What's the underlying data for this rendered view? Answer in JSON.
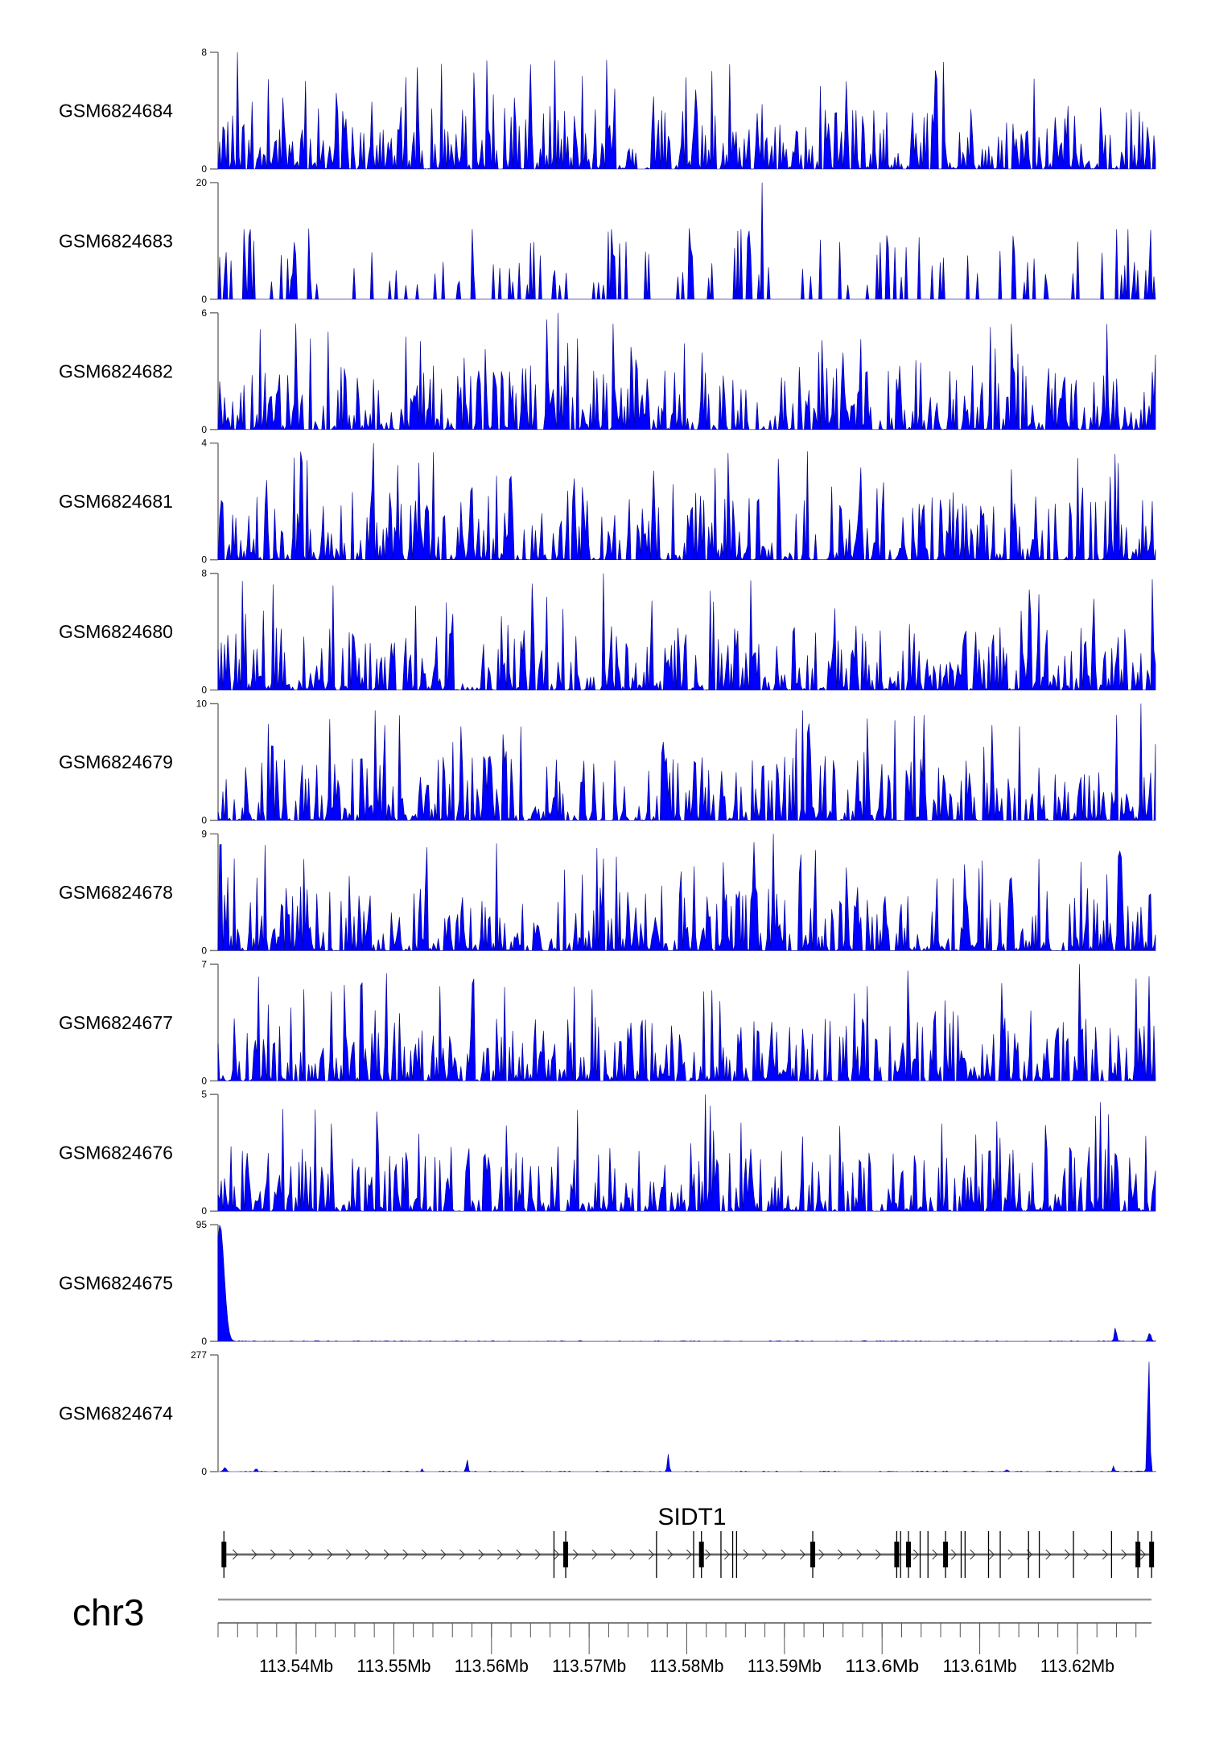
{
  "chart_data": {
    "type": "area",
    "title": "",
    "xlabel": "",
    "chromosome": "chr3",
    "xlim_mb": [
      113.532,
      113.628
    ],
    "fill_color": "#0000ff",
    "tracks": [
      {
        "name": "GSM6824684",
        "ymin": 0,
        "ymax": 8,
        "pattern": "noise"
      },
      {
        "name": "GSM6824683",
        "ymin": 0,
        "ymax": 20,
        "pattern": "sparse"
      },
      {
        "name": "GSM6824682",
        "ymin": 0,
        "ymax": 6,
        "pattern": "noise"
      },
      {
        "name": "GSM6824681",
        "ymin": 0,
        "ymax": 4,
        "pattern": "noise"
      },
      {
        "name": "GSM6824680",
        "ymin": 0,
        "ymax": 8,
        "pattern": "noise"
      },
      {
        "name": "GSM6824679",
        "ymin": 0,
        "ymax": 10,
        "pattern": "noise"
      },
      {
        "name": "GSM6824678",
        "ymin": 0,
        "ymax": 9,
        "pattern": "noise"
      },
      {
        "name": "GSM6824677",
        "ymin": 0,
        "ymax": 7,
        "pattern": "noise"
      },
      {
        "name": "GSM6824676",
        "ymin": 0,
        "ymax": 5,
        "pattern": "noise"
      },
      {
        "name": "GSM6824675",
        "ymin": 0,
        "ymax": 95,
        "pattern": "peaks",
        "peaks": [
          {
            "mb": 113.5322,
            "value": 95,
            "width_kb": 1.2
          },
          {
            "mb": 113.6239,
            "value": 12,
            "width_kb": 0.3
          },
          {
            "mb": 113.6274,
            "value": 7,
            "width_kb": 0.4
          }
        ]
      },
      {
        "name": "GSM6824674",
        "ymin": 0,
        "ymax": 277,
        "pattern": "peaks",
        "peaks": [
          {
            "mb": 113.5327,
            "value": 10,
            "width_kb": 0.4
          },
          {
            "mb": 113.5359,
            "value": 8,
            "width_kb": 0.3
          },
          {
            "mb": 113.5529,
            "value": 7,
            "width_kb": 0.2
          },
          {
            "mb": 113.5575,
            "value": 30,
            "width_kb": 0.25
          },
          {
            "mb": 113.5781,
            "value": 42,
            "width_kb": 0.25
          },
          {
            "mb": 113.6128,
            "value": 5,
            "width_kb": 0.3
          },
          {
            "mb": 113.6237,
            "value": 13,
            "width_kb": 0.25
          },
          {
            "mb": 113.6273,
            "value": 277,
            "width_kb": 0.3
          }
        ]
      }
    ],
    "gene": {
      "name": "SIDT1",
      "strand": "+",
      "start_mb": 113.5326,
      "end_mb": 113.6276,
      "exons": [
        {
          "mb": 113.5326,
          "thick": true
        },
        {
          "mb": 113.5664,
          "thick": false
        },
        {
          "mb": 113.5676,
          "thick": true
        },
        {
          "mb": 113.5769,
          "thick": false
        },
        {
          "mb": 113.5807,
          "thick": false
        },
        {
          "mb": 113.5815,
          "thick": true
        },
        {
          "mb": 113.5835,
          "thick": false
        },
        {
          "mb": 113.5847,
          "thick": false
        },
        {
          "mb": 113.5851,
          "thick": false
        },
        {
          "mb": 113.5929,
          "thick": true
        },
        {
          "mb": 113.6015,
          "thick": true
        },
        {
          "mb": 113.6019,
          "thick": false
        },
        {
          "mb": 113.6027,
          "thick": true
        },
        {
          "mb": 113.6039,
          "thick": false
        },
        {
          "mb": 113.6047,
          "thick": false
        },
        {
          "mb": 113.6065,
          "thick": true
        },
        {
          "mb": 113.6081,
          "thick": false
        },
        {
          "mb": 113.6085,
          "thick": false
        },
        {
          "mb": 113.6109,
          "thick": false
        },
        {
          "mb": 113.6121,
          "thick": false
        },
        {
          "mb": 113.615,
          "thick": false
        },
        {
          "mb": 113.6161,
          "thick": false
        },
        {
          "mb": 113.6196,
          "thick": false
        },
        {
          "mb": 113.6235,
          "thick": false
        },
        {
          "mb": 113.6262,
          "thick": true
        },
        {
          "mb": 113.6276,
          "thick": true
        }
      ]
    },
    "axis": {
      "minor_tick_kb": 2,
      "major_ticks_mb": [
        113.54,
        113.55,
        113.56,
        113.57,
        113.58,
        113.59,
        113.6,
        113.61,
        113.62
      ],
      "major_tick_labels": [
        "113.54Mb",
        "113.55Mb",
        "113.56Mb",
        "113.57Mb",
        "113.58Mb",
        "113.59Mb",
        "113.6Mb",
        "113.61Mb",
        "113.62Mb"
      ]
    }
  }
}
